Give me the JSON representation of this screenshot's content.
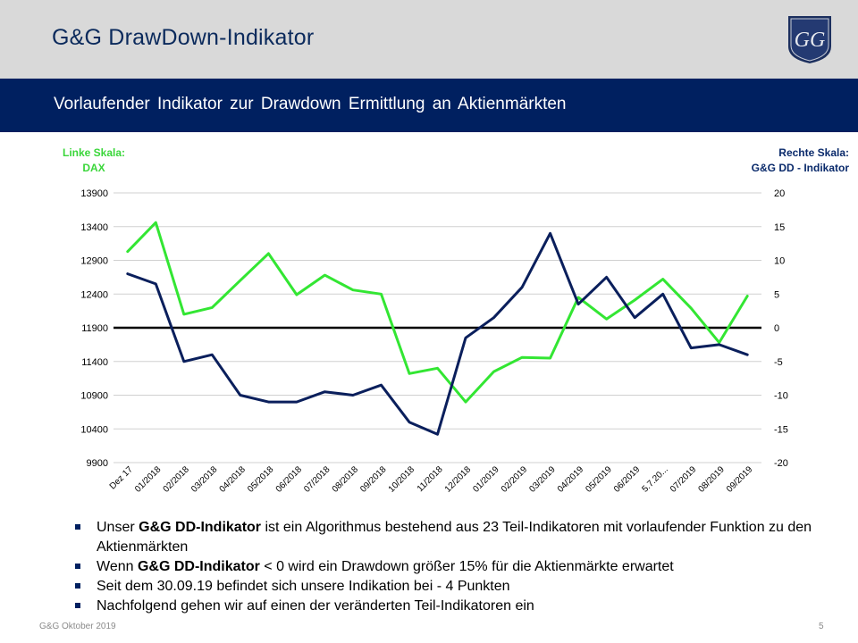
{
  "header": {
    "title": "G&G DrawDown-Indikator",
    "logo_text": "GG"
  },
  "band": {
    "subtitle": "Vorlaufender  Indikator zur Drawdown Ermittlung  an Aktienmärkten"
  },
  "colors": {
    "dax": "#33e633",
    "indicator": "#0a1f5c",
    "header_bg": "#d9d9d9",
    "band_bg": "#002060"
  },
  "chart_data": {
    "type": "line",
    "left_axis_label": [
      "Linke Skala:",
      "DAX"
    ],
    "right_axis_label": [
      "Rechte Skala:",
      "G&G DD - Indikator"
    ],
    "categories": [
      "Dez 17",
      "01/2018",
      "02/2018",
      "03/2018",
      "04/2018",
      "05/2018",
      "06/2018",
      "07/2018",
      "08/2018",
      "09/2018",
      "10/2018",
      "11/2018",
      "12/2018",
      "01/2019",
      "02/2019",
      "03/2019",
      "04/2019",
      "05/2019",
      "06/2019",
      "5.7.20...",
      "07/2019",
      "08/2019",
      "09/2019"
    ],
    "left_ticks": [
      "13900",
      "13400",
      "12900",
      "12400",
      "11900",
      "11400",
      "10900",
      "10400",
      "9900"
    ],
    "right_ticks": [
      "20",
      "15",
      "10",
      "5",
      "0",
      "-5",
      "-10",
      "-15",
      "-20"
    ],
    "left_ylim": [
      9900,
      13900
    ],
    "right_ylim": [
      -20,
      20
    ],
    "series": [
      {
        "axis": "left",
        "values": [
          13030,
          13460,
          12100,
          12200,
          12600,
          13000,
          12390,
          12680,
          12460,
          12400,
          11220,
          11300,
          10800,
          11250,
          11460,
          11450,
          12350,
          12030,
          12310,
          12620,
          12190,
          11680,
          12370
        ]
      },
      {
        "axis": "right",
        "values": [
          8,
          6.5,
          -5,
          -4,
          -10,
          -11,
          -11,
          -9.5,
          -10,
          -8.5,
          -14,
          -15.8,
          -1.5,
          1.5,
          6,
          14,
          3.5,
          7.5,
          1.5,
          5,
          -3,
          -2.5,
          -4
        ]
      }
    ],
    "zero_line": true,
    "grid": true
  },
  "bullets": [
    {
      "pre": "Unser ",
      "bold": "G&G DD-Indikator",
      "post": " ist ein Algorithmus bestehend aus 23 Teil-Indikatoren mit vorlaufender Funktion zu den Aktienmärkten"
    },
    {
      "pre": "Wenn ",
      "bold": "G&G DD-Indikator",
      "post": " < 0 wird ein Drawdown größer 15% für die Aktienmärkte erwartet"
    },
    {
      "pre": "Seit dem 30.09.19 befindet sich unsere Indikation bei - 4 Punkten",
      "bold": "",
      "post": ""
    },
    {
      "pre": "Nachfolgend gehen wir auf einen der veränderten Teil-Indikatoren ein",
      "bold": "",
      "post": ""
    }
  ],
  "footer": {
    "left": "G&G Oktober 2019",
    "page": "5"
  }
}
